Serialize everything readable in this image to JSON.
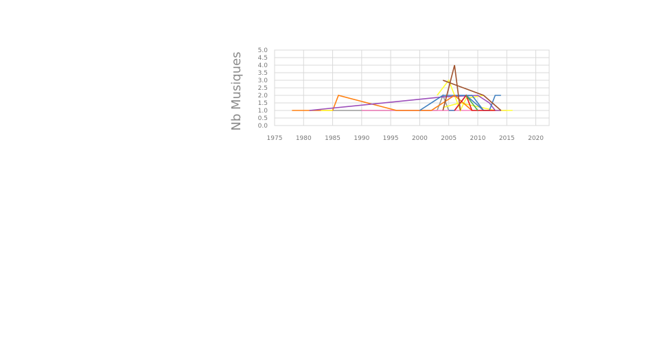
{
  "chart_data": {
    "type": "line",
    "title": "",
    "xlabel": "",
    "ylabel": "Nb Musiques",
    "xlim": [
      1975,
      2022.3
    ],
    "ylim": [
      0,
      5
    ],
    "xticks": [
      "1975",
      "1980",
      "1985",
      "1990",
      "1995",
      "2000",
      "2005",
      "2010",
      "2015",
      "2020"
    ],
    "yticks": [
      "0.0",
      "0.5",
      "1.0",
      "1.5",
      "2.0",
      "2.5",
      "3.0",
      "3.5",
      "4.0",
      "4.5",
      "5.0"
    ],
    "grid": true,
    "legend": "none",
    "series": [
      {
        "color": "#999999",
        "points": [
          [
            1985,
            1
          ],
          [
            2003,
            1
          ],
          [
            2004,
            2
          ],
          [
            2005,
            1
          ]
        ]
      },
      {
        "color": "#f781bf",
        "points": [
          [
            1990,
            1
          ],
          [
            1995,
            1
          ],
          [
            2008,
            1
          ],
          [
            2015,
            1
          ]
        ]
      },
      {
        "color": "#ff7f0e",
        "points": [
          [
            1978,
            1
          ],
          [
            1985,
            1
          ],
          [
            1986,
            2
          ],
          [
            1996,
            1
          ],
          [
            2002,
            1
          ]
        ]
      },
      {
        "color": "#ffff33",
        "points": [
          [
            1983,
            1
          ],
          [
            1985,
            1
          ]
        ]
      },
      {
        "color": "#ffff33",
        "points": [
          [
            2003,
            2
          ],
          [
            2005,
            3
          ],
          [
            2006,
            2
          ],
          [
            2007,
            1
          ],
          [
            2008,
            1.8
          ],
          [
            2011,
            2
          ]
        ]
      },
      {
        "color": "#ffff33",
        "points": [
          [
            2004,
            1.2
          ],
          [
            2007,
            1.5
          ],
          [
            2013,
            1
          ],
          [
            2016,
            1
          ]
        ]
      },
      {
        "color": "#9b4dba",
        "points": [
          [
            1981,
            1
          ],
          [
            2004,
            1.9
          ],
          [
            2010,
            2
          ],
          [
            2012,
            1.5
          ],
          [
            2013,
            1
          ],
          [
            2014,
            1
          ]
        ]
      },
      {
        "color": "#3f7fbf",
        "points": [
          [
            2000,
            1
          ],
          [
            2004,
            2
          ],
          [
            2008,
            2
          ],
          [
            2011,
            1
          ],
          [
            2012,
            1
          ],
          [
            2013,
            2
          ],
          [
            2014,
            2
          ]
        ]
      },
      {
        "color": "#3f7fbf",
        "points": [
          [
            2005,
            1
          ],
          [
            2006,
            1
          ],
          [
            2008,
            2
          ],
          [
            2009,
            2
          ],
          [
            2010,
            1.5
          ],
          [
            2011,
            1
          ]
        ]
      },
      {
        "color": "#ff7f0e",
        "points": [
          [
            2002,
            1
          ],
          [
            2006,
            2
          ],
          [
            2009,
            1
          ]
        ]
      },
      {
        "color": "#e41a1c",
        "points": [
          [
            2006,
            1
          ],
          [
            2008,
            2
          ],
          [
            2009,
            1
          ],
          [
            2013,
            1
          ]
        ]
      },
      {
        "color": "#4daf4a",
        "points": [
          [
            2008,
            2
          ],
          [
            2010,
            1
          ]
        ]
      },
      {
        "color": "#a0522d",
        "points": [
          [
            2004,
            1
          ],
          [
            2006,
            4
          ],
          [
            2007,
            1
          ]
        ]
      },
      {
        "color": "#a0522d",
        "points": [
          [
            2004,
            3
          ],
          [
            2011,
            2
          ],
          [
            2014,
            1
          ]
        ]
      }
    ]
  }
}
